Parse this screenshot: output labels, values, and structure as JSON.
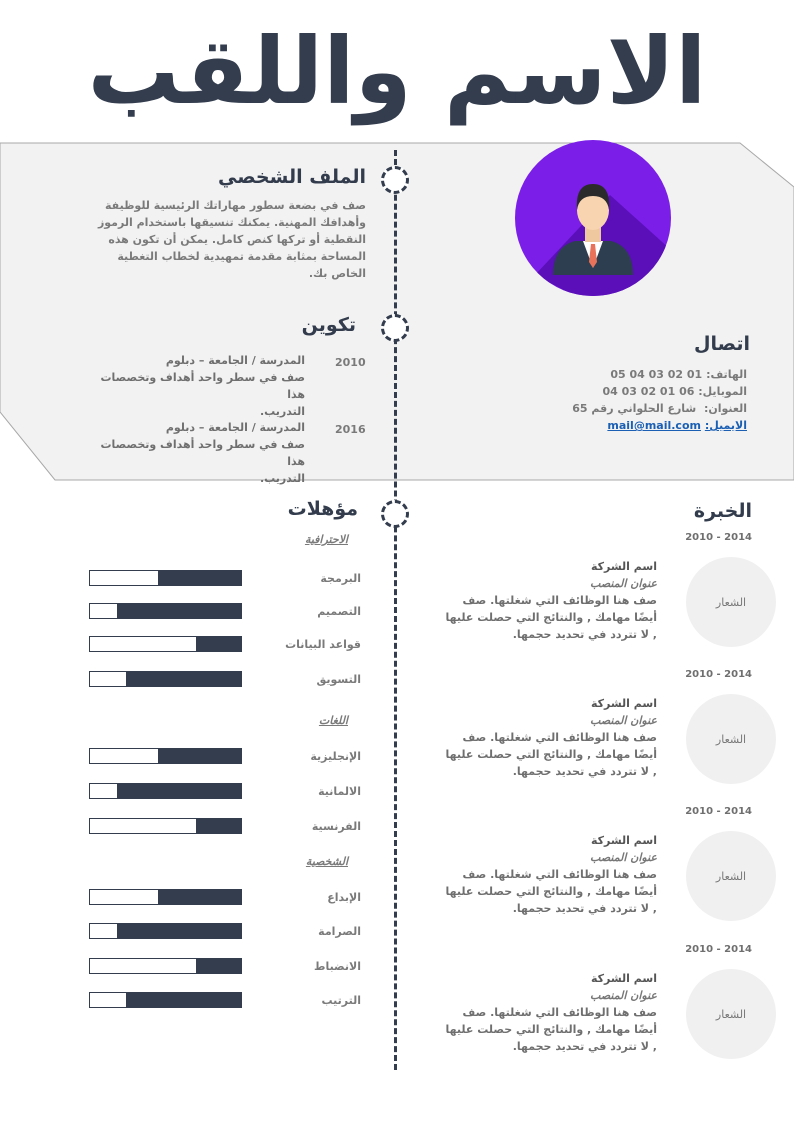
{
  "header": {
    "name_title": "الاسم واللقب"
  },
  "colors": {
    "primary": "#333d4e",
    "band": "#f2f2f2",
    "avatar": "#7a1ee8",
    "link": "#1a5fb4"
  },
  "profile": {
    "heading": "الملف الشخصي",
    "lines": [
      "صف في بضعة سطور مهاراتك الرئيسية للوظيفة",
      "وأهدافك المهنية. يمكنك تنسيقها باستخدام الرموز",
      "النقطية أو تركها كنص كامل. يمكن أن تكون هذه",
      "المساحة بمثابة مقدمة تمهيدية لخطاب التغطية",
      "الخاص بك."
    ]
  },
  "education": {
    "heading": "تكوين",
    "items": [
      {
        "year": "2010",
        "title": "المدرسة / الجامعة – دبلوم",
        "desc1": "صف في سطر واحد أهداف وتخصصات هذا",
        "desc2": "التدريب."
      },
      {
        "year": "2016",
        "title": "المدرسة / الجامعة – دبلوم",
        "desc1": "صف في سطر واحد أهداف وتخصصات هذا",
        "desc2": "التدريب."
      }
    ]
  },
  "contact": {
    "heading": "اتصال",
    "phone_label": "الهاتف:",
    "phone": "05 04 03 02 01",
    "mobile_label": "الموبايل:",
    "mobile": "04 03 02 01 06",
    "address_label": "العنوان:",
    "address": "شارع الحلواني رقم 65",
    "email_label": "الايميل:",
    "email": "mail@mail.com"
  },
  "avatar_icon": "businessman-avatar",
  "experience": {
    "heading": "الخبرة",
    "items": [
      {
        "dates": "2010 - 2014",
        "logo": "الشعار",
        "company": "اسم الشركة",
        "position": "عنوان المنصب",
        "l1": "صف هنا الوظائف التي شغلتها. صف",
        "l2": "أيضًا مهامك , والنتائج التي حصلت عليها",
        "l3": ", لا تتردد في تحديد حجمها."
      },
      {
        "dates": "2010 - 2014",
        "logo": "الشعار",
        "company": "اسم الشركة",
        "position": "عنوان المنصب",
        "l1": "صف هنا الوظائف التي شغلتها. صف",
        "l2": "أيضًا مهامك , والنتائج التي حصلت عليها",
        "l3": ", لا تتردد في تحديد حجمها."
      },
      {
        "dates": "2010 - 2014",
        "logo": "الشعار",
        "company": "اسم الشركة",
        "position": "عنوان المنصب",
        "l1": "صف هنا الوظائف التي شغلتها. صف",
        "l2": "أيضًا مهامك , والنتائج التي حصلت عليها",
        "l3": ", لا تتردد في تحديد حجمها."
      },
      {
        "dates": "2010 - 2014",
        "logo": "الشعار",
        "company": "اسم الشركة",
        "position": "عنوان المنصب",
        "l1": "صف هنا الوظائف التي شغلتها. صف",
        "l2": "أيضًا مهامك , والنتائج التي حصلت عليها",
        "l3": ", لا تتردد في تحديد حجمها."
      }
    ]
  },
  "skills": {
    "heading": "مؤهلات",
    "groups": [
      {
        "name": "الاحترافية",
        "items": [
          {
            "name": "البرمجة",
            "level": 0.55
          },
          {
            "name": "التصميم",
            "level": 0.82
          },
          {
            "name": "قواعد البيانات",
            "level": 0.3
          },
          {
            "name": "التسويق",
            "level": 0.76
          }
        ]
      },
      {
        "name": "اللغات",
        "items": [
          {
            "name": "الإنجليزية",
            "level": 0.55
          },
          {
            "name": "الالمانية",
            "level": 0.82
          },
          {
            "name": "الفرنسية",
            "level": 0.3
          }
        ]
      },
      {
        "name": "الشخصية",
        "items": [
          {
            "name": "الإبداع",
            "level": 0.55
          },
          {
            "name": "الصرامة",
            "level": 0.82
          },
          {
            "name": "الانضباط",
            "level": 0.3
          },
          {
            "name": "الترتيب",
            "level": 0.76
          }
        ]
      }
    ]
  }
}
